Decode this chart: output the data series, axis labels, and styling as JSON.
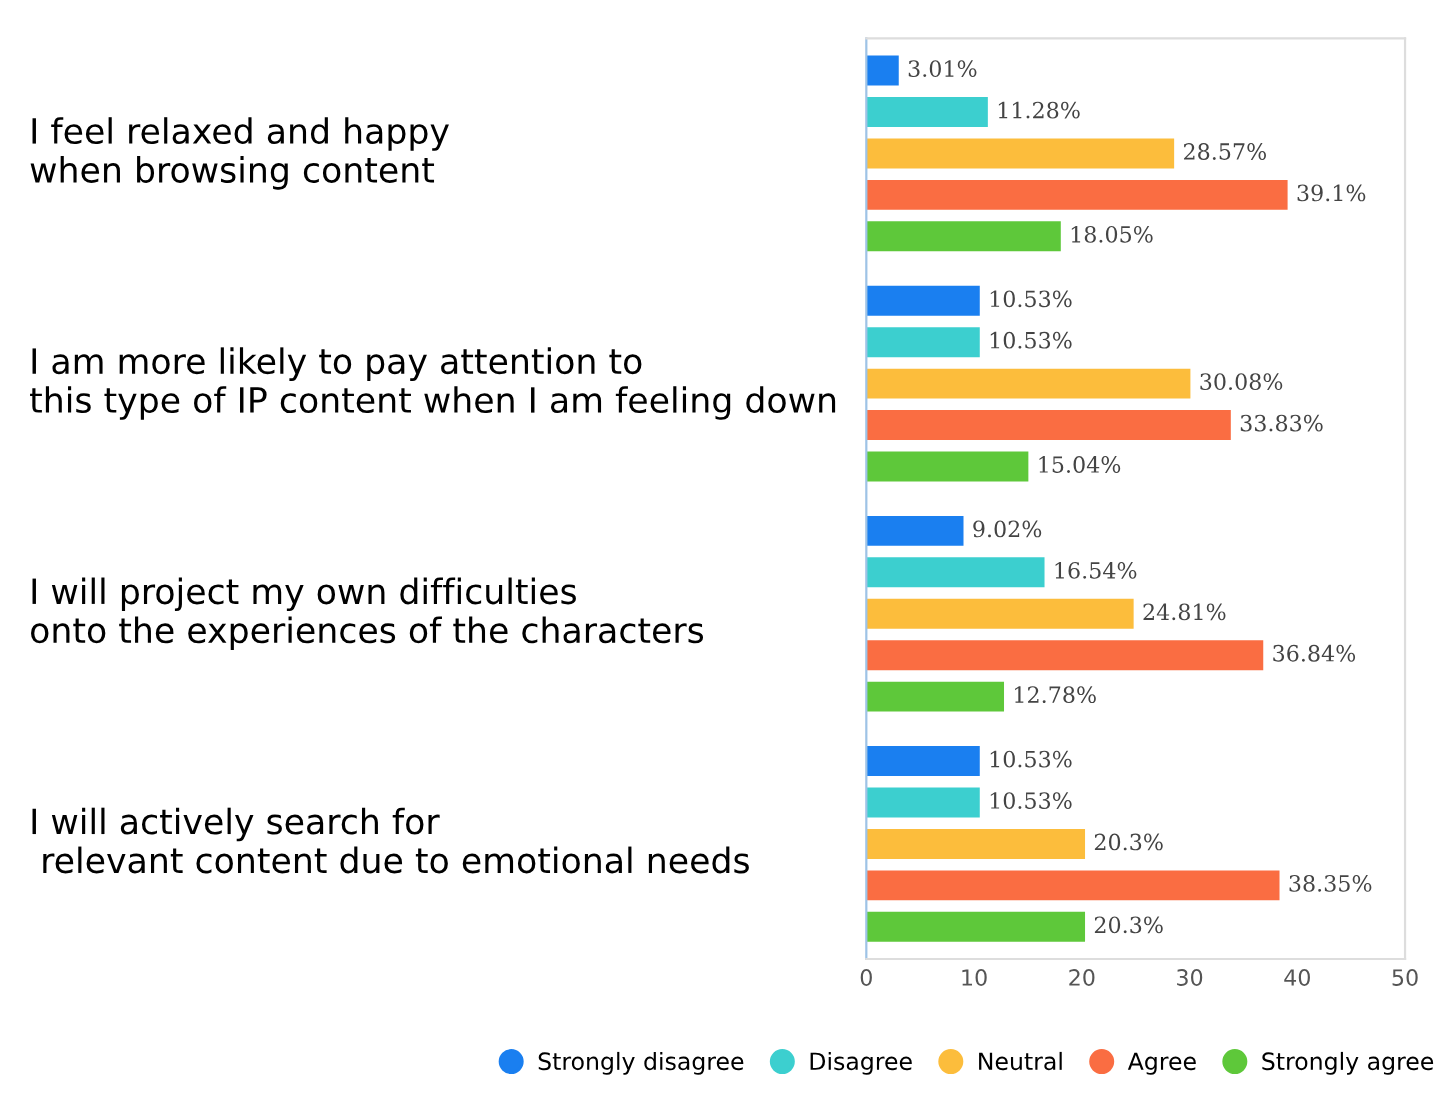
{
  "chart_data": {
    "type": "bar",
    "orientation": "horizontal",
    "categories": [
      "I feel relaxed and happy\nwhen browsing content",
      "I am more likely to pay attention to\nthis type of IP content when I am feeling down",
      "I will project my own difficulties\nonto the experiences of the characters",
      "I will actively search for\n relevant content due to emotional needs"
    ],
    "series": [
      {
        "name": "Strongly disagree",
        "color": "#1a7ff0",
        "values": [
          3.01,
          10.53,
          9.02,
          10.53
        ],
        "value_labels": [
          "3.01%",
          "10.53%",
          "9.02%",
          "10.53%"
        ]
      },
      {
        "name": "Disagree",
        "color": "#3ccfcf",
        "values": [
          11.28,
          10.53,
          16.54,
          10.53
        ],
        "value_labels": [
          "11.28%",
          "10.53%",
          "16.54%",
          "10.53%"
        ]
      },
      {
        "name": "Neutral",
        "color": "#fcbd3c",
        "values": [
          28.57,
          30.08,
          24.81,
          20.3
        ],
        "value_labels": [
          "28.57%",
          "30.08%",
          "24.81%",
          "20.3%"
        ]
      },
      {
        "name": "Agree",
        "color": "#fa6d42",
        "values": [
          39.1,
          33.83,
          36.84,
          38.35
        ],
        "value_labels": [
          "39.1%",
          "33.83%",
          "36.84%",
          "38.35%"
        ]
      },
      {
        "name": "Strongly agree",
        "color": "#5ec83a",
        "values": [
          18.05,
          15.04,
          12.78,
          20.3
        ],
        "value_labels": [
          "18.05%",
          "15.04%",
          "12.78%",
          "20.3%"
        ]
      }
    ],
    "xlim": [
      0,
      50
    ],
    "xticks": [
      0,
      10,
      20,
      30,
      40,
      50
    ],
    "grid": false,
    "legend": "bottom"
  }
}
